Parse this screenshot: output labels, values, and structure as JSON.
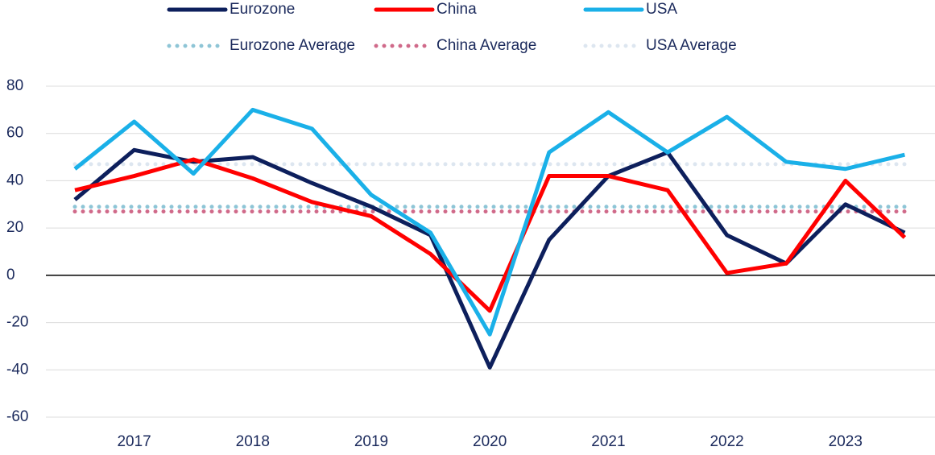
{
  "chart_data": {
    "type": "line",
    "categories": [
      null,
      "2017",
      null,
      "2018",
      null,
      "2019",
      null,
      "2020",
      null,
      "2021",
      null,
      "2022",
      null,
      "2023",
      null
    ],
    "series": [
      {
        "name": "Eurozone",
        "color": "#0d1f5c",
        "values": [
          32,
          53,
          48,
          50,
          39,
          29,
          17,
          -39,
          15,
          42,
          52,
          17,
          5,
          30,
          18
        ]
      },
      {
        "name": "China",
        "color": "#ff0000",
        "values": [
          36,
          42,
          49,
          41,
          31,
          25,
          9,
          -15,
          42,
          42,
          36,
          1,
          5,
          40,
          16
        ]
      },
      {
        "name": "USA",
        "color": "#1ab0e8",
        "values": [
          45,
          65,
          43,
          70,
          62,
          34,
          18,
          -25,
          52,
          69,
          52,
          67,
          48,
          45,
          51
        ]
      }
    ],
    "average_lines": [
      {
        "name": "Eurozone Average",
        "color": "#8ec5d6",
        "value": 29
      },
      {
        "name": "China Average",
        "color": "#d06a8a",
        "value": 27
      },
      {
        "name": "USA Average",
        "color": "#dde6f0",
        "value": 47
      }
    ],
    "ylim": [
      -60,
      80
    ],
    "yticks": [
      -60,
      -40,
      -20,
      0,
      20,
      40,
      60,
      80
    ],
    "grid": true
  }
}
